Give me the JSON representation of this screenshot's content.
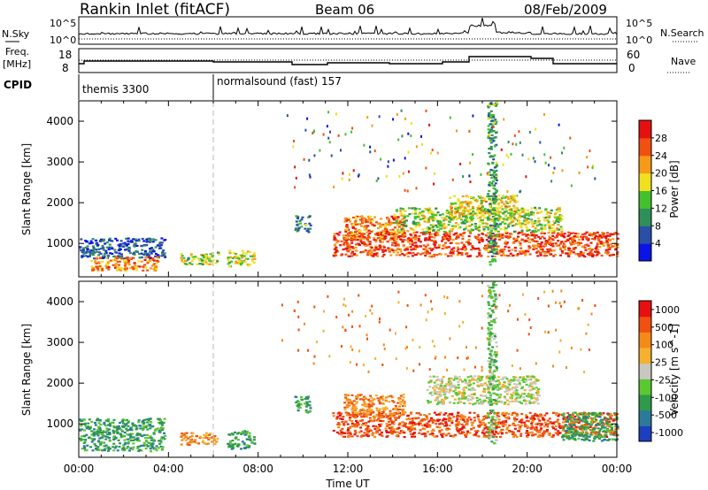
{
  "header": {
    "station": "Rankin Inlet (fitACF)",
    "beam": "Beam 06",
    "date": "08/Feb/2009"
  },
  "strips": {
    "sky_label": "N.Sky",
    "search_label": "N.Search",
    "sky_ticks": [
      "10^5",
      "10^0"
    ],
    "search_ticks": [
      "10^5",
      "10^0"
    ],
    "freq_label_top": "Freq.",
    "freq_label_unit": "[MHz]",
    "freq_ticks": [
      "18",
      "8"
    ],
    "nave_label": "Nave",
    "nave_ticks": [
      "60",
      "0"
    ],
    "cpid_label": "CPID",
    "cpid_programs": [
      {
        "name": "themis 3300",
        "start_hour": 0
      },
      {
        "name": "normalsound (fast) 157",
        "start_hour": 6
      }
    ]
  },
  "chart_data": [
    {
      "type": "heatmap",
      "title": "",
      "xlabel": "",
      "ylabel": "Slant Range [km]",
      "x_ticks": [
        "00:00",
        "04:00",
        "08:00",
        "12:00",
        "16:00",
        "20:00",
        "00:00"
      ],
      "xlim_hours": [
        0,
        24
      ],
      "y_ticks": [
        1000,
        2000,
        3000,
        4000
      ],
      "ylim": [
        180,
        4500
      ],
      "colorbar": {
        "label": "Power [dB]",
        "ticks": [
          "4",
          "8",
          "12",
          "16",
          "20",
          "24",
          "28"
        ],
        "range": [
          0,
          30
        ],
        "colors": [
          "#0a14e6",
          "#2a4fa8",
          "#2f8f5a",
          "#44c02e",
          "#f0e020",
          "#f79a18",
          "#f05010",
          "#e61010"
        ]
      },
      "bands": [
        {
          "t0": 0.0,
          "t1": 3.8,
          "r0": 650,
          "r1": 1150,
          "level": 4
        },
        {
          "t0": 0.5,
          "t1": 3.5,
          "r0": 350,
          "r1": 700,
          "level": 22
        },
        {
          "t0": 4.5,
          "t1": 6.2,
          "r0": 500,
          "r1": 800,
          "level": 14
        },
        {
          "t0": 6.6,
          "t1": 7.8,
          "r0": 450,
          "r1": 850,
          "level": 17
        },
        {
          "t0": 9.6,
          "t1": 10.3,
          "r0": 1300,
          "r1": 1700,
          "level": 9
        },
        {
          "t0": 11.3,
          "t1": 24.0,
          "r0": 700,
          "r1": 1300,
          "level": 27
        },
        {
          "t0": 11.8,
          "t1": 14.5,
          "r0": 1100,
          "r1": 1700,
          "level": 24
        },
        {
          "t0": 14.0,
          "t1": 21.5,
          "r0": 1300,
          "r1": 1900,
          "level": 15
        },
        {
          "t0": 16.5,
          "t1": 19.5,
          "r0": 1700,
          "r1": 2200,
          "level": 18
        },
        {
          "t0": 18.2,
          "t1": 18.6,
          "r0": 500,
          "r1": 4500,
          "level": 10
        }
      ]
    },
    {
      "type": "heatmap",
      "title": "",
      "xlabel": "Time UT",
      "ylabel": "Slant Range [km]",
      "x_ticks": [
        "00:00",
        "04:00",
        "08:00",
        "12:00",
        "16:00",
        "20:00",
        "00:00"
      ],
      "xlim_hours": [
        0,
        24
      ],
      "y_ticks": [
        1000,
        2000,
        3000,
        4000
      ],
      "ylim": [
        180,
        4500
      ],
      "colorbar": {
        "label": "Velocity [m s^-1]",
        "ticks": [
          "1000",
          "500",
          "100",
          "25",
          "-25",
          "-100",
          "-500",
          "-1000"
        ],
        "colors": [
          "#1b3fbf",
          "#2c7a9a",
          "#2f9a4a",
          "#5ac830",
          "#c8c8c0",
          "#f5b030",
          "#f58a18",
          "#f05010",
          "#e61010"
        ]
      },
      "bands": [
        {
          "t0": 0.0,
          "t1": 3.8,
          "r0": 350,
          "r1": 1150,
          "level": 2
        },
        {
          "t0": 4.5,
          "t1": 6.2,
          "r0": 500,
          "r1": 800,
          "level": 6
        },
        {
          "t0": 6.6,
          "t1": 7.8,
          "r0": 400,
          "r1": 850,
          "level": 2
        },
        {
          "t0": 9.6,
          "t1": 10.3,
          "r0": 1300,
          "r1": 1700,
          "level": 2
        },
        {
          "t0": 11.3,
          "t1": 24.0,
          "r0": 700,
          "r1": 1300,
          "level": 7
        },
        {
          "t0": 11.8,
          "t1": 14.5,
          "r0": 1200,
          "r1": 1750,
          "level": 6
        },
        {
          "t0": 15.5,
          "t1": 20.5,
          "r0": 1500,
          "r1": 2200,
          "level": 4
        },
        {
          "t0": 18.2,
          "t1": 18.6,
          "r0": 500,
          "r1": 4500,
          "level": 3
        },
        {
          "t0": 21.5,
          "t1": 24.0,
          "r0": 600,
          "r1": 1300,
          "level": 2
        }
      ]
    }
  ]
}
